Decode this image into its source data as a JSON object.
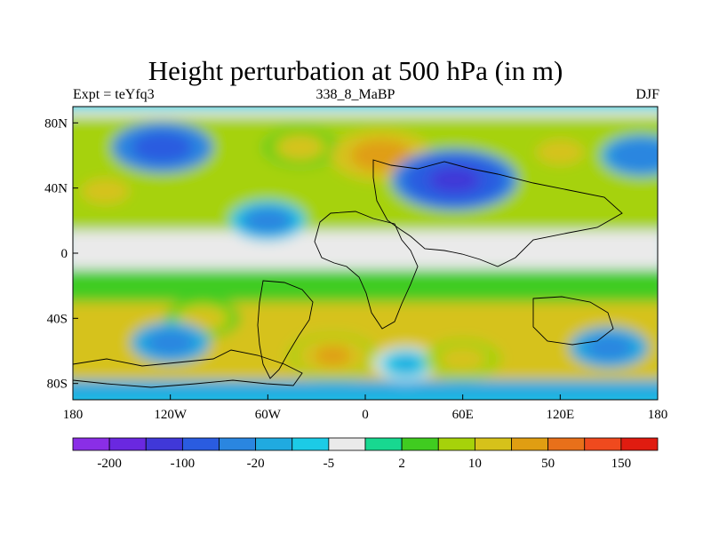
{
  "title": "Height perturbation at 500 hPa (in m)",
  "subtitles": {
    "left": "Expt = teYfq3",
    "center": "338_8_MaBP",
    "right": "DJF"
  },
  "map": {
    "projection": "cylindrical equidistant",
    "lon_range": [
      -180,
      180
    ],
    "lat_range": [
      -90,
      90
    ],
    "x_ticks": [
      {
        "value": -180,
        "label": "180"
      },
      {
        "value": -120,
        "label": "120W"
      },
      {
        "value": -60,
        "label": "60W"
      },
      {
        "value": 0,
        "label": "0"
      },
      {
        "value": 60,
        "label": "60E"
      },
      {
        "value": 120,
        "label": "120E"
      },
      {
        "value": 180,
        "label": "180"
      }
    ],
    "y_ticks": [
      {
        "value": 80,
        "label": "80N"
      },
      {
        "value": 40,
        "label": "40N"
      },
      {
        "value": 0,
        "label": "0"
      },
      {
        "value": -40,
        "label": "40S"
      },
      {
        "value": -80,
        "label": "80S"
      }
    ],
    "field": "500 hPa height perturbation (m)",
    "features": [
      {
        "type": "positive",
        "lon": -160,
        "lat": 38,
        "value": 45
      },
      {
        "type": "negative",
        "lon": -125,
        "lat": 65,
        "value": -90
      },
      {
        "type": "negative",
        "lon": -60,
        "lat": 20,
        "value": -40
      },
      {
        "type": "positive",
        "lon": -40,
        "lat": 65,
        "value": 35
      },
      {
        "type": "positive",
        "lon": 10,
        "lat": 60,
        "value": 90
      },
      {
        "type": "negative",
        "lon": 55,
        "lat": 45,
        "value": -140
      },
      {
        "type": "positive",
        "lon": 120,
        "lat": 62,
        "value": 45
      },
      {
        "type": "negative",
        "lon": 170,
        "lat": 60,
        "value": -50
      },
      {
        "type": "positive",
        "lon": -100,
        "lat": -40,
        "value": 35
      },
      {
        "type": "negative",
        "lon": -120,
        "lat": -55,
        "value": -45
      },
      {
        "type": "positive",
        "lon": -20,
        "lat": -63,
        "value": 65
      },
      {
        "type": "negative",
        "lon": 25,
        "lat": -68,
        "value": -15
      },
      {
        "type": "positive",
        "lon": 60,
        "lat": -65,
        "value": 40
      },
      {
        "type": "negative",
        "lon": 150,
        "lat": -58,
        "value": -45
      }
    ]
  },
  "colorbar": {
    "colors": [
      "#8a2ee6",
      "#6a28e0",
      "#4038d8",
      "#2a5ce0",
      "#2a86e0",
      "#20aae0",
      "#1ccbe6",
      "#eaeaea",
      "#18d890",
      "#40cc20",
      "#a6d20a",
      "#d6c21a",
      "#e09e12",
      "#e8701a",
      "#ef4a1e",
      "#e01c10"
    ],
    "labels": [
      {
        "boundary": 1,
        "text": "-200"
      },
      {
        "boundary": 3,
        "text": "-100"
      },
      {
        "boundary": 5,
        "text": "-20"
      },
      {
        "boundary": 7,
        "text": "-5"
      },
      {
        "boundary": 9,
        "text": "2"
      },
      {
        "boundary": 11,
        "text": "10"
      },
      {
        "boundary": 13,
        "text": "50"
      },
      {
        "boundary": 15,
        "text": "150"
      }
    ]
  }
}
